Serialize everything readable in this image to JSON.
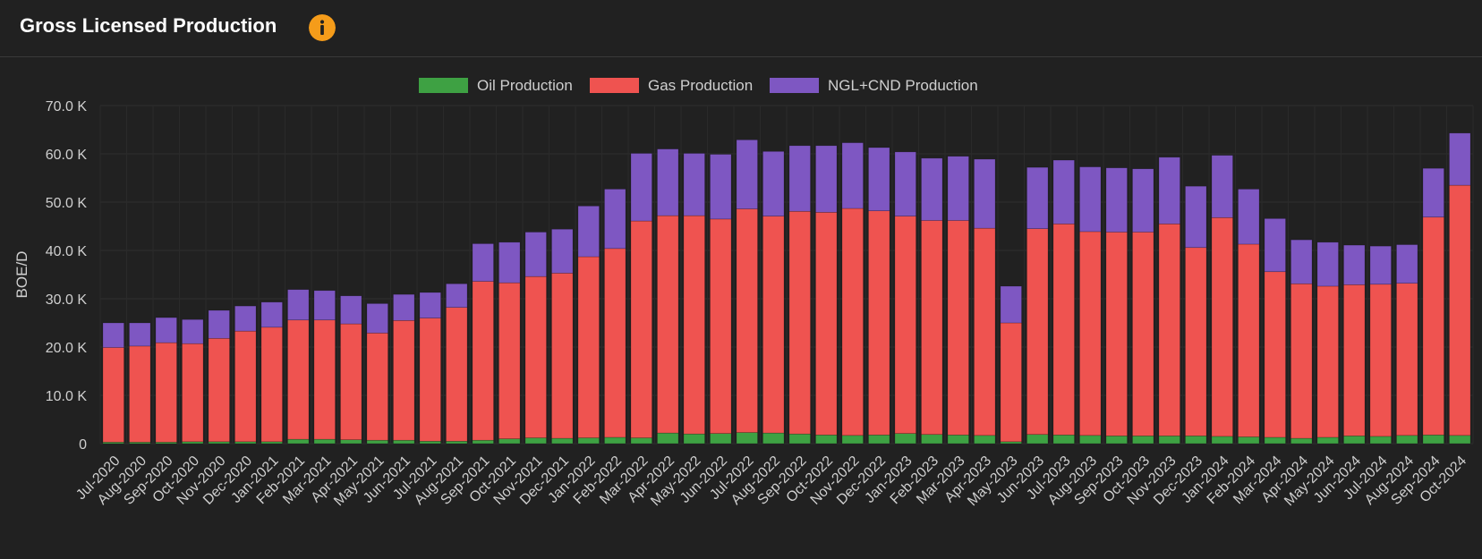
{
  "header": {
    "title": "Gross Licensed Production",
    "info_icon": "info-icon",
    "info_icon_color": "#F59C1A"
  },
  "chart_data": {
    "type": "bar",
    "stacked": true,
    "ylabel": "BOE/D",
    "ylim": [
      0,
      70000
    ],
    "yticks": [
      0,
      10000,
      20000,
      30000,
      40000,
      50000,
      60000,
      70000
    ],
    "ytick_labels": [
      "0",
      "10.0 K",
      "20.0 K",
      "30.0 K",
      "40.0 K",
      "50.0 K",
      "60.0 K",
      "70.0 K"
    ],
    "legend_position": "top-center",
    "grid": true,
    "categories": [
      "Jul-2020",
      "Aug-2020",
      "Sep-2020",
      "Oct-2020",
      "Nov-2020",
      "Dec-2020",
      "Jan-2021",
      "Feb-2021",
      "Mar-2021",
      "Apr-2021",
      "May-2021",
      "Jun-2021",
      "Jul-2021",
      "Aug-2021",
      "Sep-2021",
      "Oct-2021",
      "Nov-2021",
      "Dec-2021",
      "Jan-2022",
      "Feb-2022",
      "Mar-2022",
      "Apr-2022",
      "May-2022",
      "Jun-2022",
      "Jul-2022",
      "Aug-2022",
      "Sep-2022",
      "Oct-2022",
      "Nov-2022",
      "Dec-2022",
      "Jan-2023",
      "Feb-2023",
      "Mar-2023",
      "Apr-2023",
      "May-2023",
      "Jun-2023",
      "Jul-2023",
      "Aug-2023",
      "Sep-2023",
      "Oct-2023",
      "Nov-2023",
      "Dec-2023",
      "Jan-2024",
      "Feb-2024",
      "Mar-2024",
      "Apr-2024",
      "May-2024",
      "Jun-2024",
      "Jul-2024",
      "Aug-2024",
      "Sep-2024",
      "Oct-2024"
    ],
    "series": [
      {
        "name": "Oil Production",
        "color": "#3EA143",
        "values": [
          300,
          300,
          300,
          400,
          400,
          400,
          400,
          900,
          900,
          800,
          700,
          700,
          500,
          500,
          700,
          1000,
          1200,
          1100,
          1200,
          1300,
          1200,
          2200,
          2000,
          2100,
          2300,
          2200,
          2000,
          1800,
          1700,
          1800,
          2100,
          1900,
          1800,
          1700,
          400,
          1900,
          1800,
          1700,
          1600,
          1600,
          1600,
          1600,
          1500,
          1400,
          1300,
          1100,
          1300,
          1600,
          1500,
          1700,
          1800,
          1700
        ]
      },
      {
        "name": "Gas Production",
        "color": "#EF5350",
        "values": [
          19600,
          19900,
          20600,
          20300,
          21400,
          22900,
          23700,
          24700,
          24700,
          24000,
          22200,
          24800,
          25500,
          27700,
          32900,
          32300,
          33400,
          34200,
          37500,
          39100,
          44900,
          45000,
          45200,
          44400,
          46300,
          44900,
          46100,
          46100,
          47000,
          46400,
          45000,
          44300,
          44400,
          42900,
          24600,
          42600,
          43700,
          42200,
          42200,
          42200,
          43900,
          39000,
          45300,
          39900,
          34300,
          32000,
          31300,
          31300,
          31500,
          31500,
          45100,
          51800
        ]
      },
      {
        "name": "NGL+CND Production",
        "color": "#7E57C2",
        "values": [
          5100,
          4800,
          5200,
          5000,
          5800,
          5200,
          5200,
          6300,
          6100,
          5800,
          6100,
          5400,
          5300,
          4900,
          7800,
          8400,
          9200,
          9100,
          10500,
          12300,
          14000,
          13800,
          12900,
          13400,
          14300,
          13400,
          13600,
          13800,
          13600,
          13100,
          13300,
          12900,
          13300,
          14300,
          7600,
          12700,
          13200,
          13400,
          13300,
          13100,
          13800,
          12700,
          12900,
          11400,
          11000,
          9100,
          9100,
          8200,
          7900,
          8000,
          10100,
          10800
        ]
      }
    ]
  }
}
